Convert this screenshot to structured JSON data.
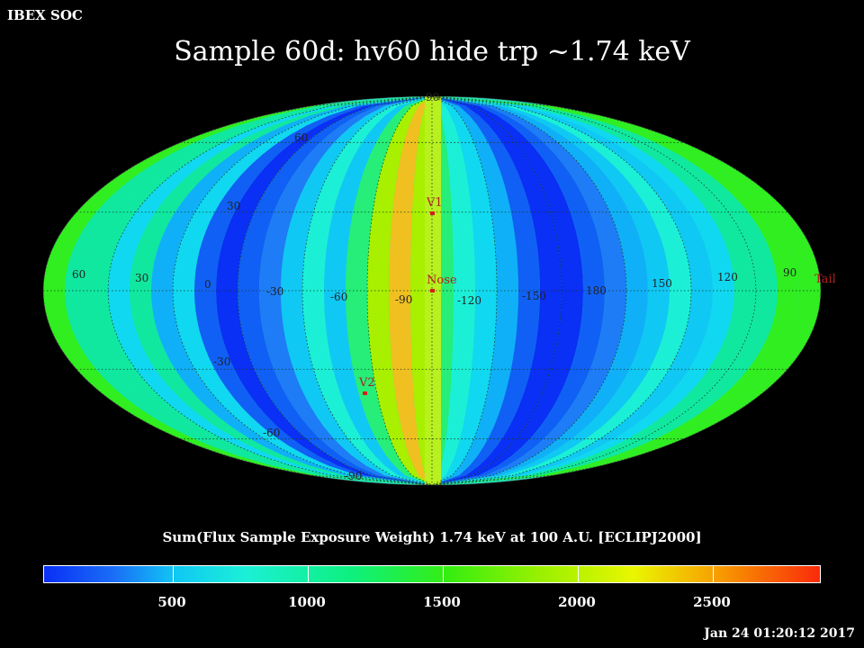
{
  "header": {
    "left_label": "IBEX SOC"
  },
  "title": "Sample 60d: hv60 hide trp ~1.74 keV",
  "colorbar": {
    "title": "Sum(Flux Sample Exposure Weight)  1.74 keV at 100 A.U. [ECLIPJ2000]",
    "ticks": [
      "500",
      "1000",
      "1500",
      "2000",
      "2500"
    ],
    "tick_values": [
      500,
      1000,
      1500,
      2000,
      2500
    ],
    "range": [
      0,
      2900
    ]
  },
  "timestamp": "Jan 24 01:20:12 2017",
  "map": {
    "projection": "mollweide",
    "frame": "ECLIPJ2000",
    "lon_labels": [
      "60",
      "30",
      "0",
      "-30",
      "-60",
      "-90",
      "-120",
      "-150",
      "180",
      "150",
      "120",
      "90"
    ],
    "lat_labels": {
      "top": "90",
      "upper_left_1": "60",
      "upper_left_2": "30",
      "lower_left_1": "-30",
      "lower_left_2": "-60",
      "bottom": "-90"
    },
    "markers": [
      {
        "label": "V1",
        "color": "#d02020"
      },
      {
        "label": "Nose",
        "color": "#d02020"
      },
      {
        "label": "V2",
        "color": "#d02020"
      },
      {
        "label": "Tail",
        "color": "#d02020"
      }
    ],
    "stripe_colors": [
      "#30ee20",
      "#10e8a0",
      "#10d8f0",
      "#10b0f8",
      "#1060f5",
      "#0a2ff5",
      "#1e7cf6",
      "#10c8f4",
      "#1bf0d7",
      "#26ee78",
      "#a8f000",
      "#f0c020"
    ]
  }
}
